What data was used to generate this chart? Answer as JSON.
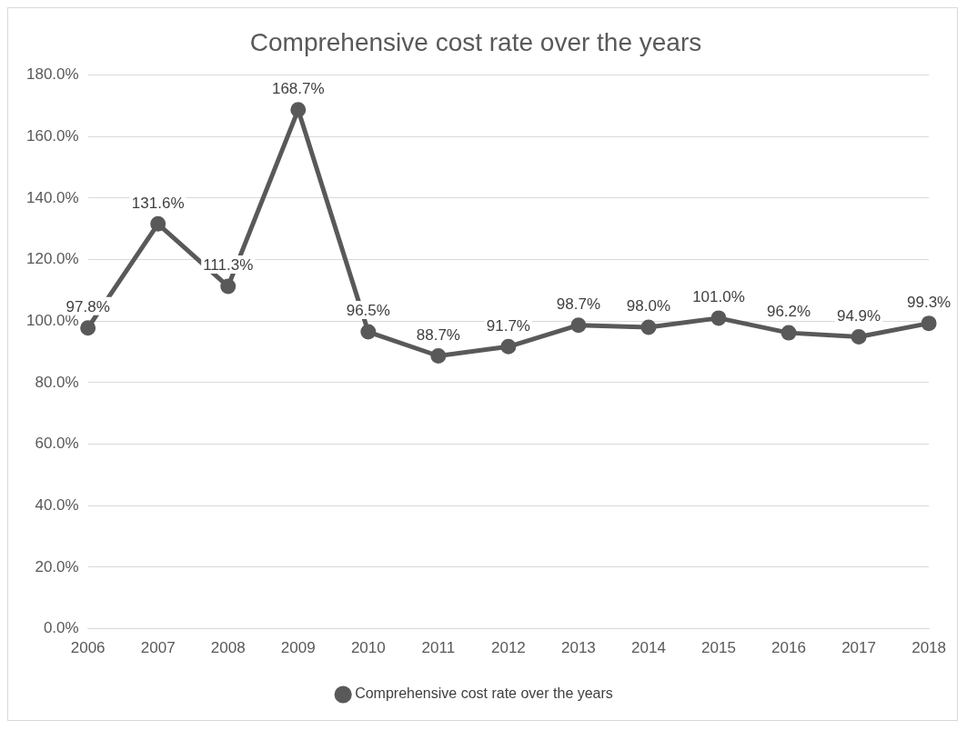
{
  "chart_data": {
    "type": "line",
    "title": "Comprehensive cost rate over the years",
    "categories": [
      "2006",
      "2007",
      "2008",
      "2009",
      "2010",
      "2011",
      "2012",
      "2013",
      "2014",
      "2015",
      "2016",
      "2017",
      "2018"
    ],
    "series": [
      {
        "name": "Comprehensive cost rate over the years",
        "color": "#595959",
        "values": [
          97.8,
          131.6,
          111.3,
          168.7,
          96.5,
          88.7,
          91.7,
          98.7,
          98.0,
          101.0,
          96.2,
          94.9,
          99.3
        ],
        "value_labels": [
          "97.8%",
          "131.6%",
          "111.3%",
          "168.7%",
          "96.5%",
          "88.7%",
          "91.7%",
          "98.7%",
          "98.0%",
          "101.0%",
          "96.2%",
          "94.9%",
          "99.3%"
        ]
      }
    ],
    "ylim": [
      0,
      180
    ],
    "yticks": [
      {
        "value": 0,
        "label": "0.0%"
      },
      {
        "value": 20,
        "label": "20.0%"
      },
      {
        "value": 40,
        "label": "40.0%"
      },
      {
        "value": 60,
        "label": "60.0%"
      },
      {
        "value": 80,
        "label": "80.0%"
      },
      {
        "value": 100,
        "label": "100.0%"
      },
      {
        "value": 120,
        "label": "120.0%"
      },
      {
        "value": 140,
        "label": "140.0%"
      },
      {
        "value": 160,
        "label": "160.0%"
      },
      {
        "value": 180,
        "label": "180.0%"
      }
    ],
    "grid": "y",
    "legend": "bottom",
    "marker": "circle",
    "line_style": "solid"
  }
}
